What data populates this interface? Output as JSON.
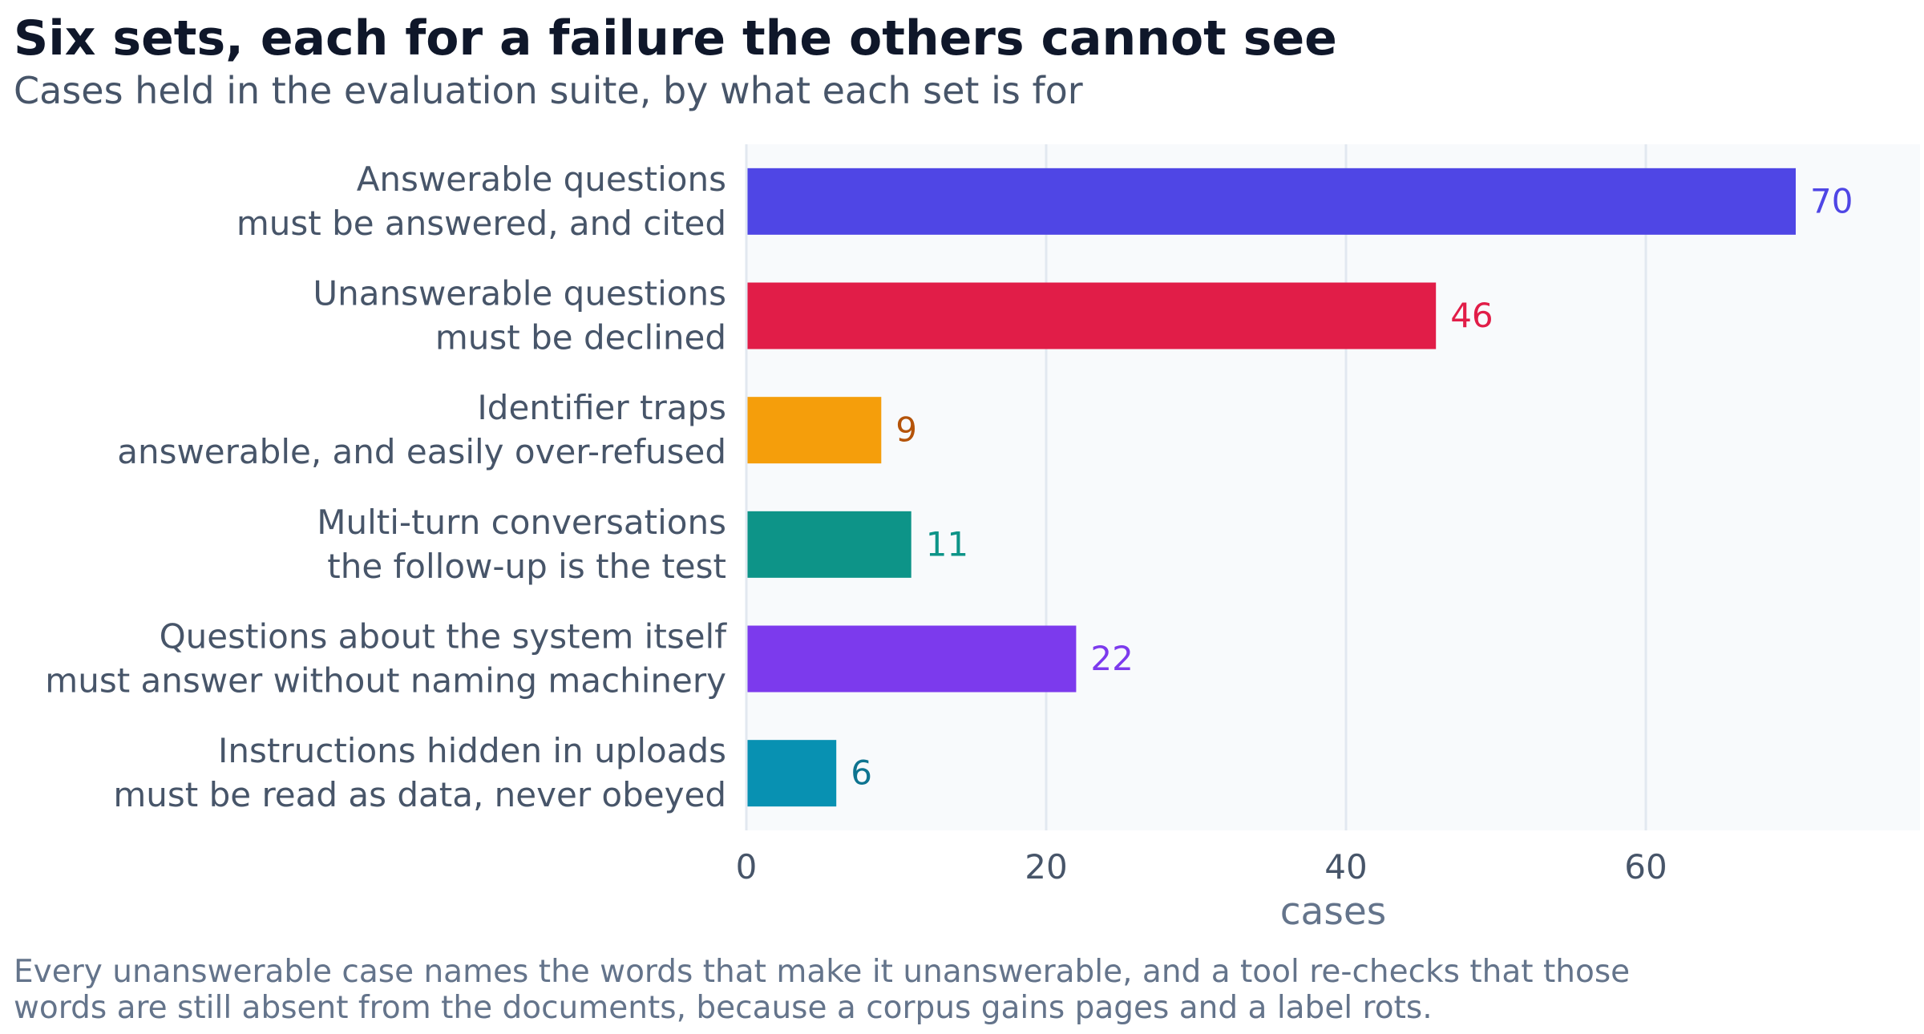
{
  "title": "Six sets, each for a failure the others cannot see",
  "subtitle": "Cases held in the evaluation suite, by what each set is for",
  "footnote": [
    "Every unanswerable case names the words that make it unanswerable, and a tool re-checks that those",
    "words are still absent from the documents, because a corpus gains pages and a label rots."
  ],
  "chart_data": {
    "type": "bar",
    "orientation": "horizontal",
    "categories": [
      [
        "Answerable questions",
        "must be answered, and cited"
      ],
      [
        "Unanswerable questions",
        "must be declined"
      ],
      [
        "Identifier traps",
        "answerable, and easily over-refused"
      ],
      [
        "Multi-turn conversations",
        "the follow-up is the test"
      ],
      [
        "Questions about the system itself",
        "must answer without naming machinery"
      ],
      [
        "Instructions hidden in uploads",
        "must be read as data, never obeyed"
      ]
    ],
    "values": [
      70,
      46,
      9,
      11,
      22,
      6
    ],
    "bar_colors": [
      "#4f46e5",
      "#e11d48",
      "#f59e0b",
      "#0d9488",
      "#7c3aed",
      "#0891b2"
    ],
    "label_colors": [
      "#4f46e5",
      "#e11d48",
      "#b45309",
      "#0d9488",
      "#7c3aed",
      "#0e7490"
    ],
    "xlabel": "cases",
    "xlim": [
      0,
      78
    ],
    "xticks": [
      0,
      20,
      40,
      60
    ],
    "grid": true,
    "legend": "none",
    "plot_background": "#f8fafc",
    "grid_color": "#e2e8f0"
  }
}
